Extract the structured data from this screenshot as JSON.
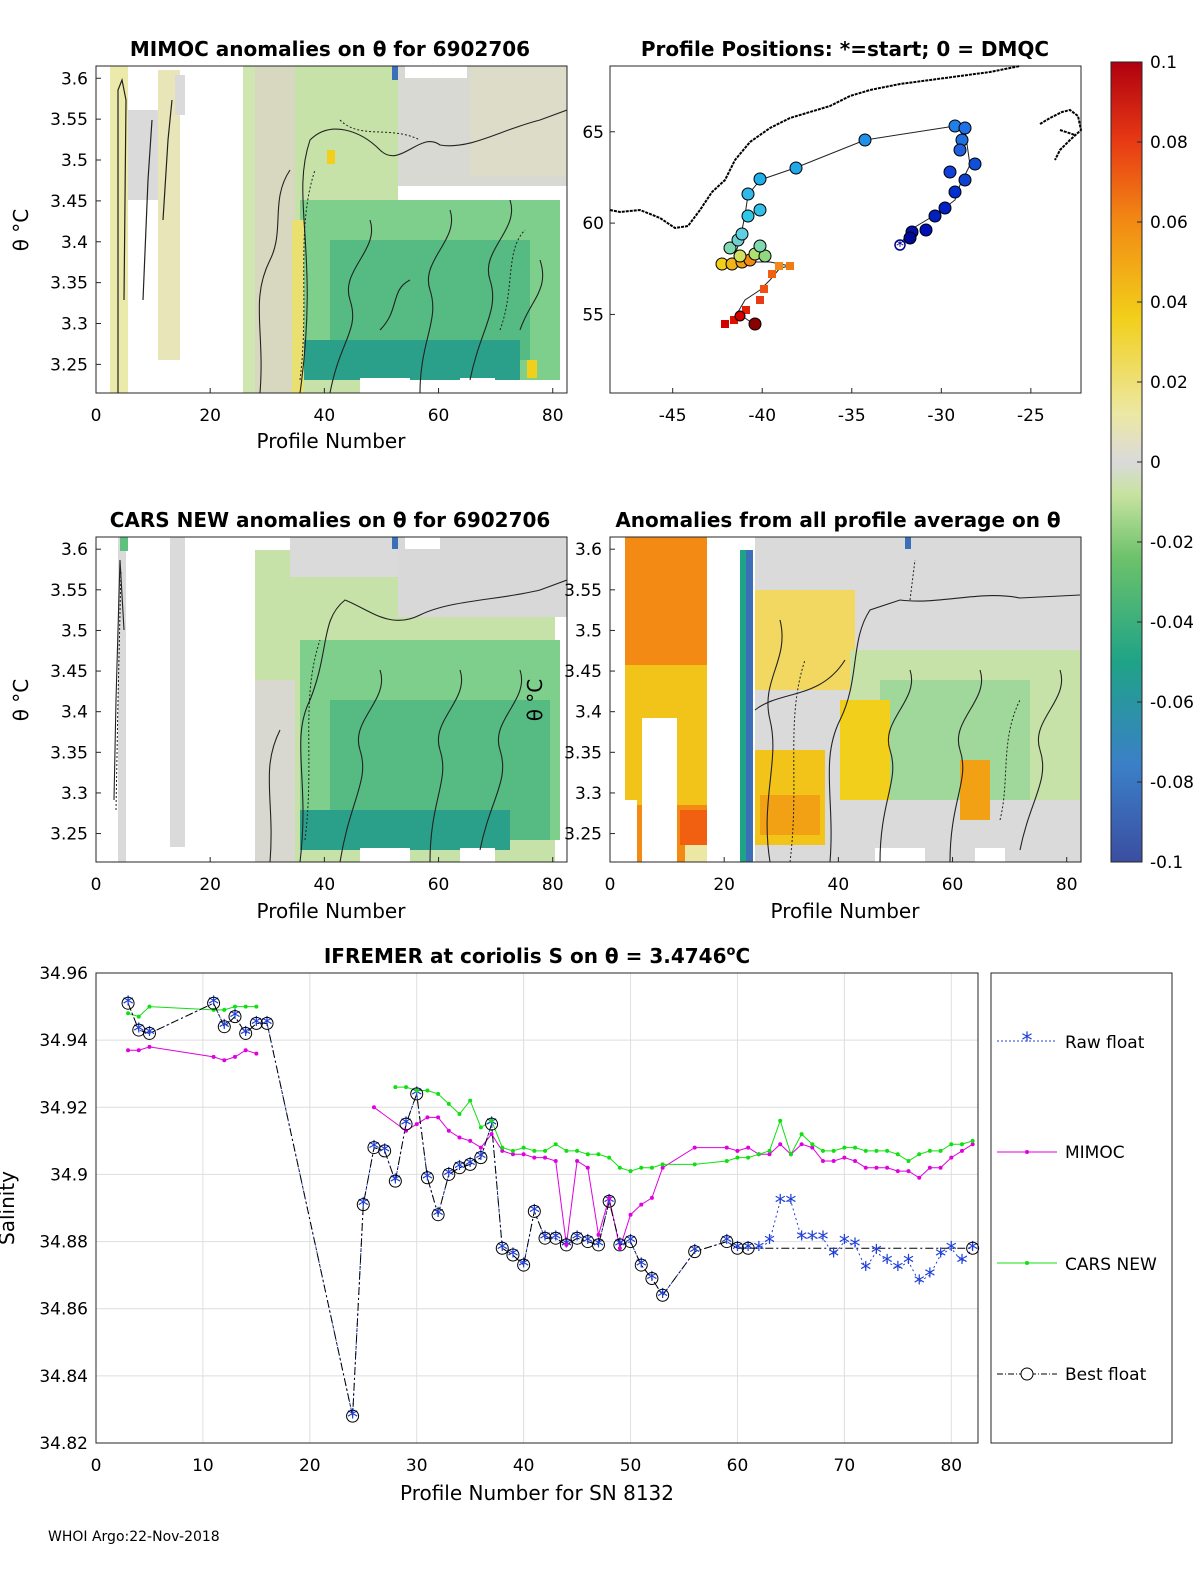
{
  "footer": "WHOI Argo:22-Nov-2018",
  "colors": {
    "raw": "#1f3fd8",
    "mimoc": "#e000e0",
    "cars": "#10e010",
    "best": "#000000",
    "grid": "#dedede",
    "axis": "#262626"
  },
  "colorbar": {
    "ticks": [
      "0.1",
      "0.08",
      "0.06",
      "0.04",
      "0.02",
      "0",
      "-0.02",
      "-0.04",
      "-0.06",
      "-0.08",
      "-0.1"
    ],
    "range": [
      -0.1,
      0.1
    ]
  },
  "panels": {
    "mimoc": {
      "title": "MIMOC anomalies on θ  for 6902706",
      "xlabel": "Profile Number",
      "ylabel": "θ °C"
    },
    "positions": {
      "title": "Profile Positions: *=start; 0 = DMQC"
    },
    "cars": {
      "title": "CARS NEW anomalies on θ for 6902706",
      "xlabel": "Profile Number",
      "ylabel": "θ °C"
    },
    "allavg": {
      "title": "Anomalies from all profile average on θ",
      "xlabel": "Profile Number",
      "ylabel": "θ °C"
    }
  },
  "anom_axes": {
    "x_ticks": [
      "0",
      "20",
      "40",
      "60",
      "80"
    ],
    "y_ticks": [
      "3.6",
      "3.55",
      "3.5",
      "3.45",
      "3.4",
      "3.35",
      "3.3",
      "3.25"
    ]
  },
  "map_axes": {
    "x_ticks": [
      "-45",
      "-40",
      "-35",
      "-30",
      "-25"
    ],
    "y_ticks": [
      "65",
      "60",
      "55"
    ]
  },
  "chart_data": {
    "type": "line",
    "title": "IFREMER at coriolis S on θ = 3.4746°C",
    "title_main": "IFREMER at coriolis S on θ = 3.4746",
    "title_deg": "o",
    "title_unit": "C",
    "xlabel": "Profile Number for SN 8132",
    "ylabel": "Salinity",
    "xlim": [
      0,
      82.5
    ],
    "ylim": [
      34.82,
      34.96
    ],
    "x_ticks": [
      "0",
      "10",
      "20",
      "30",
      "40",
      "50",
      "60",
      "70",
      "80"
    ],
    "y_ticks": [
      "34.96",
      "34.94",
      "34.92",
      "34.9",
      "34.88",
      "34.86",
      "34.84",
      "34.82"
    ],
    "legend": [
      "Raw float",
      "MIMOC",
      "CARS NEW",
      "Best float"
    ],
    "series": [
      {
        "name": "Raw float",
        "x": [
          3,
          4,
          5,
          11,
          12,
          13,
          14,
          15,
          16,
          24,
          25,
          26,
          27,
          28,
          29,
          30,
          31,
          32,
          33,
          34,
          35,
          36,
          37,
          38,
          39,
          40,
          41,
          42,
          43,
          44,
          45,
          46,
          47,
          48,
          49,
          50,
          51,
          52,
          53,
          56,
          59,
          60,
          61,
          62,
          63,
          64,
          65,
          66,
          67,
          68,
          69,
          70,
          71,
          72,
          73,
          74,
          75,
          76,
          77,
          78,
          79,
          80,
          81,
          82
        ],
        "y": [
          34.951,
          34.943,
          34.942,
          34.951,
          34.944,
          34.947,
          34.942,
          34.945,
          34.945,
          34.828,
          34.891,
          34.908,
          34.907,
          34.898,
          34.915,
          34.924,
          34.899,
          34.888,
          34.9,
          34.902,
          34.903,
          34.905,
          34.915,
          34.878,
          34.876,
          34.873,
          34.889,
          34.881,
          34.881,
          34.879,
          34.881,
          34.88,
          34.879,
          34.892,
          34.879,
          34.88,
          34.873,
          34.869,
          34.864,
          34.877,
          34.88,
          34.878,
          34.878,
          34.878,
          34.88,
          34.892,
          34.892,
          34.881,
          34.881,
          34.881,
          34.876,
          34.88,
          34.879,
          34.872,
          34.877,
          34.874,
          34.872,
          34.874,
          34.868,
          34.87,
          34.876,
          34.878,
          34.874,
          34.878
        ]
      },
      {
        "name": "MIMOC",
        "x": [
          3,
          4,
          5,
          11,
          12,
          13,
          14,
          15,
          26,
          29,
          30,
          31,
          32,
          33,
          34,
          35,
          36,
          37,
          38,
          39,
          40,
          41,
          42,
          43,
          44,
          45,
          46,
          47,
          48,
          49,
          50,
          51,
          52,
          53,
          56,
          59,
          60,
          61,
          62,
          63,
          64,
          65,
          66,
          67,
          68,
          69,
          70,
          71,
          72,
          73,
          74,
          75,
          76,
          77,
          78,
          79,
          80,
          81,
          82
        ],
        "y": [
          34.937,
          34.937,
          34.938,
          34.935,
          34.934,
          34.935,
          34.937,
          34.936,
          34.92,
          34.913,
          34.915,
          34.917,
          34.917,
          34.913,
          34.911,
          34.91,
          34.908,
          34.912,
          34.907,
          34.906,
          34.906,
          34.905,
          34.905,
          34.904,
          34.879,
          34.904,
          34.902,
          34.882,
          34.893,
          34.878,
          34.888,
          34.891,
          34.893,
          34.902,
          34.908,
          34.908,
          34.907,
          34.908,
          34.906,
          34.906,
          34.909,
          34.906,
          34.909,
          34.908,
          34.904,
          34.904,
          34.905,
          34.904,
          34.902,
          34.902,
          34.902,
          34.901,
          34.901,
          34.899,
          34.902,
          34.902,
          34.905,
          34.907,
          34.909
        ]
      },
      {
        "name": "CARS NEW",
        "x": [
          3,
          4,
          5,
          11,
          12,
          13,
          14,
          15,
          28,
          29,
          30,
          31,
          32,
          33,
          34,
          35,
          36,
          37,
          38,
          39,
          40,
          41,
          42,
          43,
          44,
          45,
          46,
          47,
          48,
          49,
          50,
          51,
          52,
          53,
          56,
          59,
          60,
          61,
          62,
          63,
          64,
          65,
          66,
          67,
          68,
          69,
          70,
          71,
          72,
          73,
          74,
          75,
          76,
          77,
          78,
          79,
          80,
          81,
          82
        ],
        "y": [
          34.948,
          34.947,
          34.95,
          34.949,
          34.949,
          34.95,
          34.95,
          34.95,
          34.926,
          34.926,
          34.925,
          34.925,
          34.924,
          34.921,
          34.918,
          34.922,
          34.914,
          34.916,
          34.908,
          34.907,
          34.908,
          34.907,
          34.907,
          34.909,
          34.907,
          34.907,
          34.906,
          34.906,
          34.905,
          34.902,
          34.901,
          34.902,
          34.902,
          34.903,
          34.903,
          34.904,
          34.905,
          34.905,
          34.906,
          34.907,
          34.916,
          34.906,
          34.912,
          34.909,
          34.907,
          34.907,
          34.908,
          34.908,
          34.907,
          34.907,
          34.907,
          34.906,
          34.904,
          34.906,
          34.907,
          34.907,
          34.909,
          34.909,
          34.91
        ]
      },
      {
        "name": "Best float",
        "x": [
          3,
          4,
          5,
          11,
          12,
          13,
          14,
          15,
          16,
          24,
          25,
          26,
          27,
          28,
          29,
          30,
          31,
          32,
          33,
          34,
          35,
          36,
          37,
          38,
          39,
          40,
          41,
          42,
          43,
          44,
          45,
          46,
          47,
          48,
          49,
          50,
          51,
          52,
          53,
          56,
          59,
          60,
          61,
          82
        ],
        "y": [
          34.951,
          34.943,
          34.942,
          34.951,
          34.944,
          34.947,
          34.942,
          34.945,
          34.945,
          34.828,
          34.891,
          34.908,
          34.907,
          34.898,
          34.915,
          34.924,
          34.899,
          34.888,
          34.9,
          34.902,
          34.903,
          34.905,
          34.915,
          34.878,
          34.876,
          34.873,
          34.889,
          34.881,
          34.881,
          34.879,
          34.881,
          34.88,
          34.879,
          34.892,
          34.879,
          34.88,
          34.873,
          34.869,
          34.864,
          34.877,
          34.88,
          34.878,
          34.878,
          34.878
        ]
      }
    ]
  }
}
